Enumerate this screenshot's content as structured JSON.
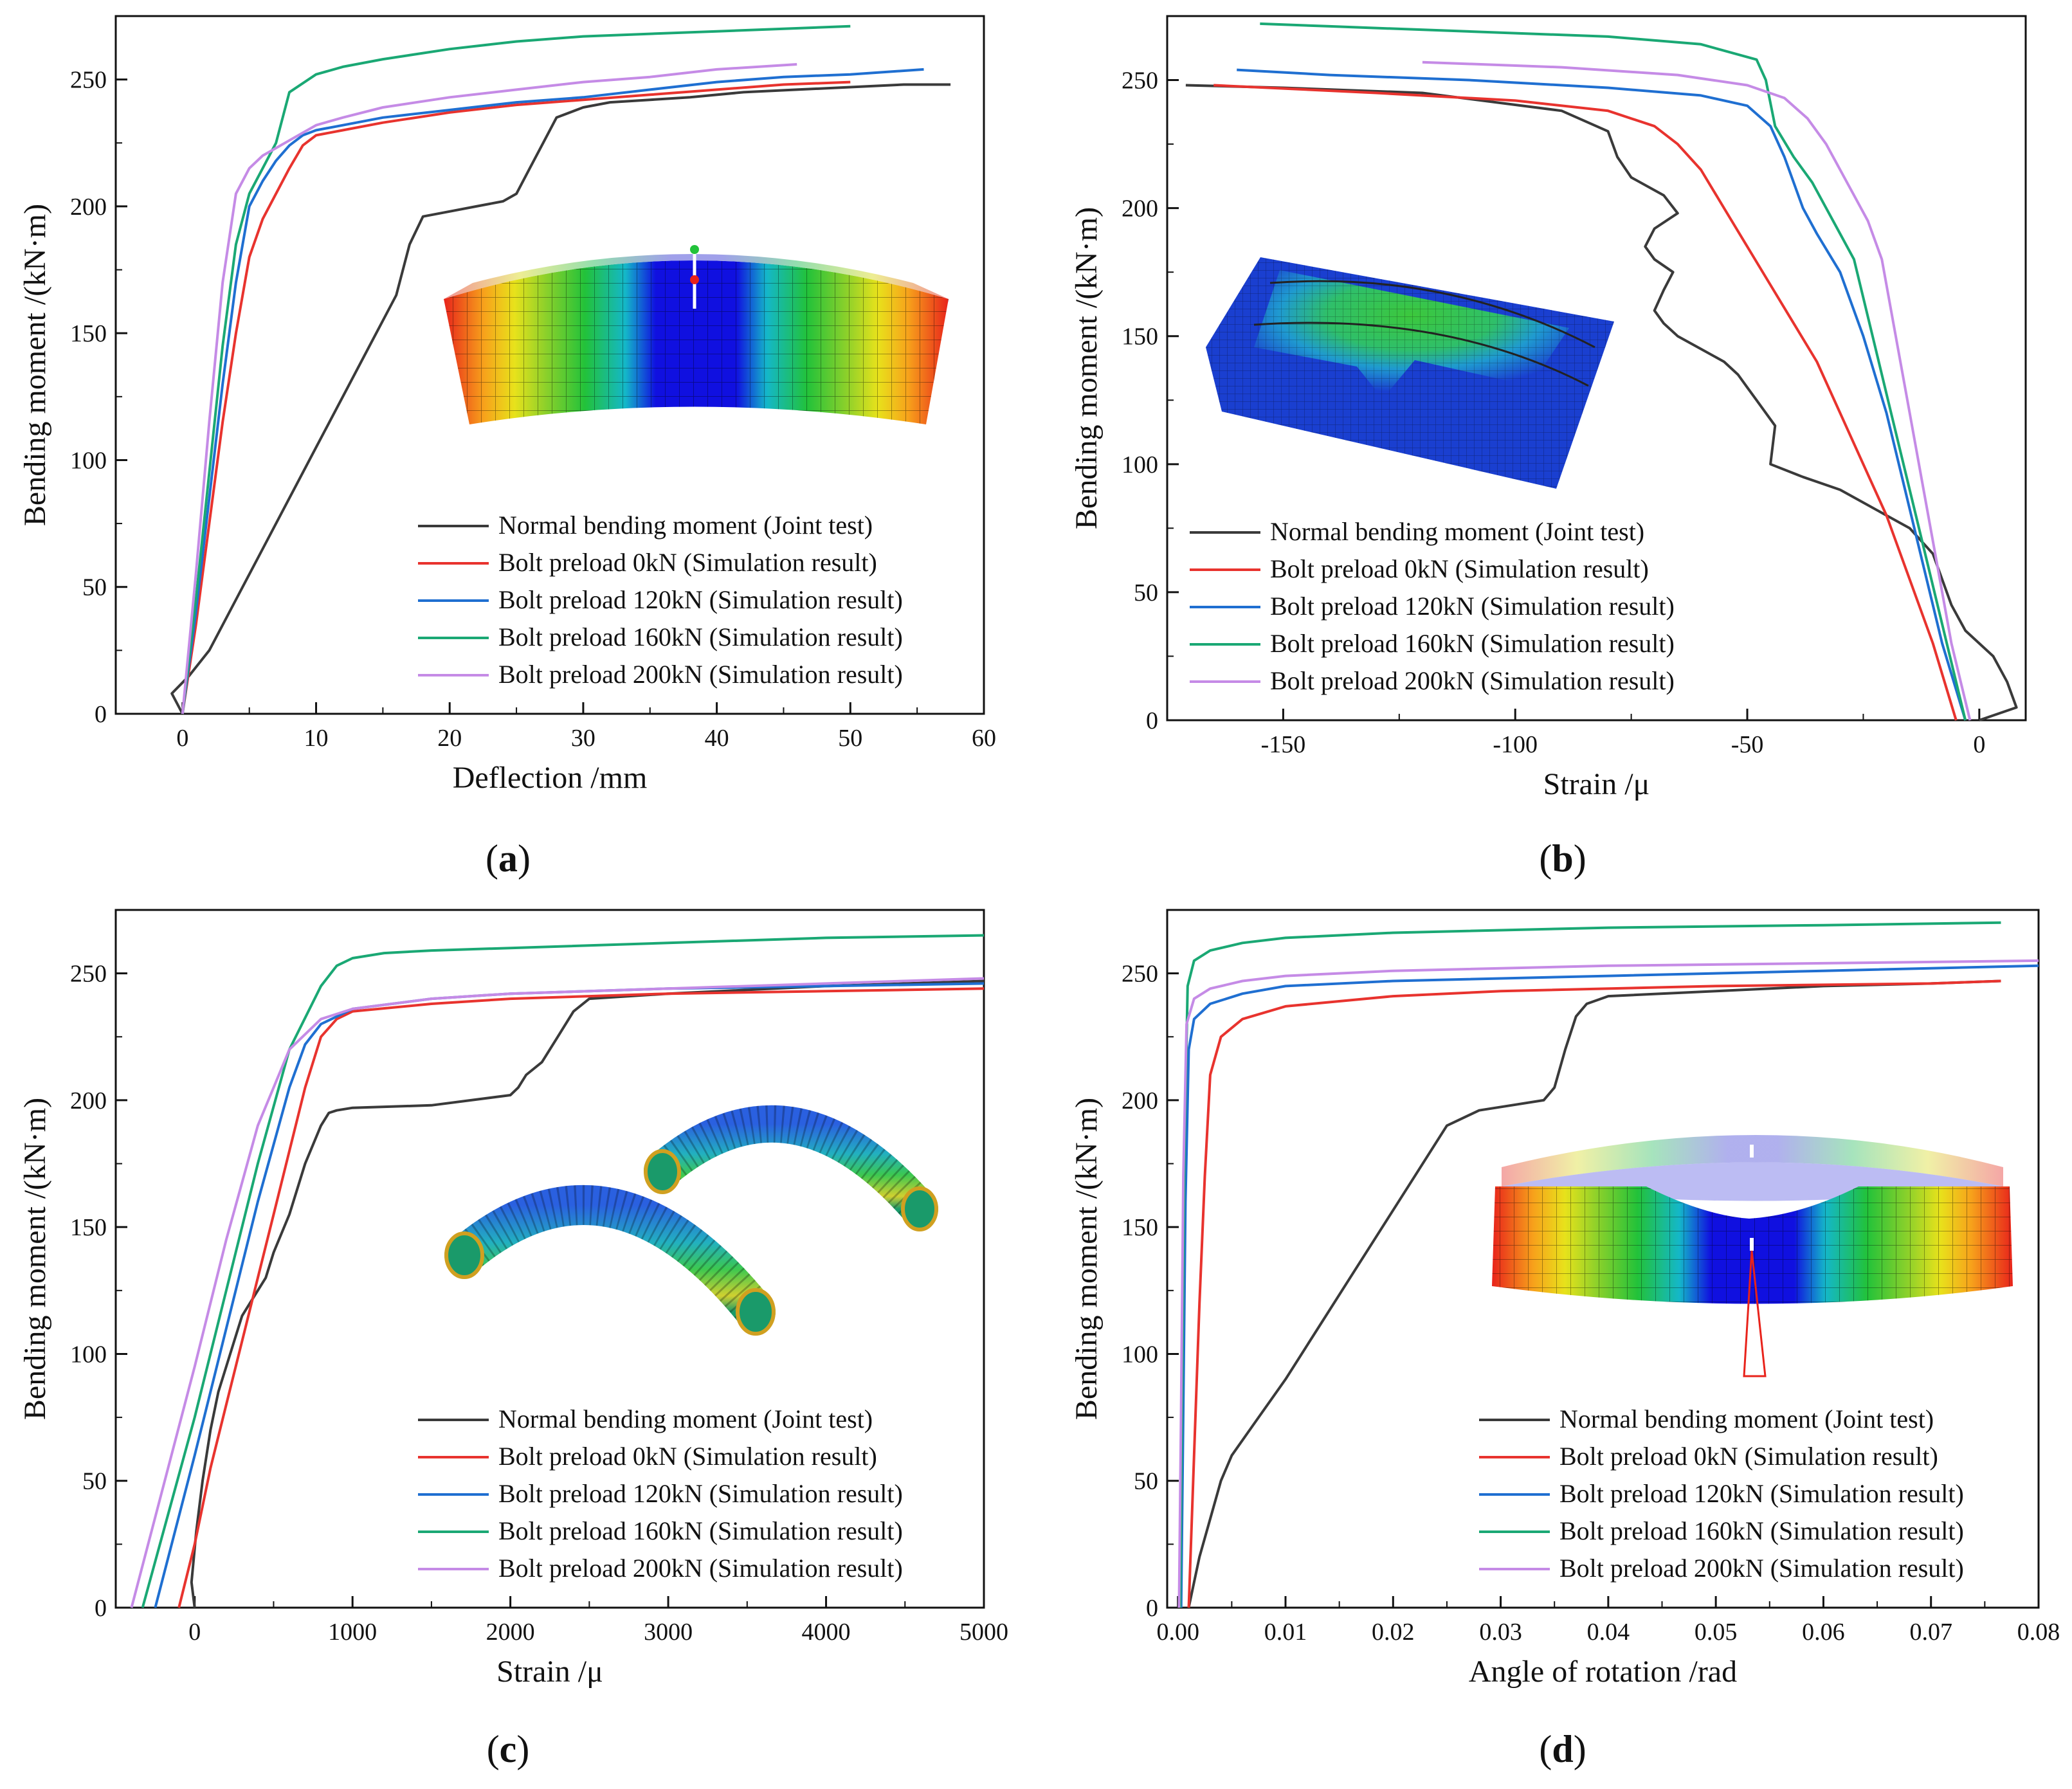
{
  "chart_data": [
    {
      "id": "a",
      "type": "line",
      "panel_label": "a",
      "xlabel": "Deflection /mm",
      "ylabel": "Bending moment /(kN·m)",
      "xlim": [
        -5,
        60
      ],
      "ylim": [
        0,
        275
      ],
      "xticks": [
        0,
        10,
        20,
        30,
        40,
        50,
        60
      ],
      "yticks": [
        0,
        50,
        100,
        150,
        200,
        250
      ],
      "legend_position": "bottom-right",
      "inset": "deformed-joint-contour",
      "series": [
        {
          "name": "Normal bending moment (Joint test)",
          "color": "#3a3a3a",
          "x": [
            0,
            -0.8,
            0.5,
            2,
            4,
            6,
            8,
            10,
            12,
            14,
            15,
            16,
            17,
            18,
            20,
            22,
            24,
            25,
            26,
            27,
            28,
            30,
            32,
            35,
            38,
            42,
            46,
            50,
            54,
            57.5
          ],
          "y": [
            0,
            8,
            15,
            25,
            45,
            65,
            85,
            105,
            125,
            145,
            155,
            165,
            185,
            196,
            198,
            200,
            202,
            205,
            215,
            225,
            235,
            239,
            241,
            242,
            243,
            245,
            246,
            247,
            248,
            248
          ]
        },
        {
          "name": "Bolt preload 0kN     (Simulation result)",
          "color": "#e8332e",
          "x": [
            0,
            1,
            2,
            3,
            4,
            5,
            6,
            7,
            8,
            9,
            10,
            12,
            15,
            20,
            25,
            30,
            35,
            40,
            45,
            50
          ],
          "y": [
            0,
            35,
            75,
            115,
            150,
            180,
            195,
            205,
            215,
            224,
            228,
            230,
            233,
            237,
            240,
            242,
            244,
            246,
            248,
            249
          ]
        },
        {
          "name": "Bolt preload 120kN (Simulation result)",
          "color": "#1f6fd1",
          "x": [
            0,
            1,
            2,
            3,
            4,
            5,
            6,
            7,
            8,
            9,
            10,
            12,
            15,
            20,
            25,
            30,
            35,
            40,
            45,
            50,
            55.5
          ],
          "y": [
            0,
            40,
            85,
            130,
            170,
            200,
            210,
            218,
            224,
            228,
            230,
            232,
            235,
            238,
            241,
            243,
            246,
            249,
            251,
            252,
            254
          ]
        },
        {
          "name": "Bolt preload 160kN (Simulation result)",
          "color": "#1aa874",
          "x": [
            0,
            1,
            2,
            3,
            4,
            5,
            6,
            7,
            8,
            10,
            12,
            15,
            20,
            25,
            30,
            35,
            40,
            45,
            50
          ],
          "y": [
            0,
            45,
            95,
            145,
            185,
            205,
            215,
            225,
            245,
            252,
            255,
            258,
            262,
            265,
            267,
            268,
            269,
            270,
            271
          ]
        },
        {
          "name": "Bolt preload 200kN (Simulation result)",
          "color": "#c58be6",
          "x": [
            0,
            1,
            2,
            3,
            4,
            5,
            6,
            7,
            8,
            9,
            10,
            12,
            15,
            20,
            25,
            30,
            35,
            40,
            46
          ],
          "y": [
            0,
            55,
            115,
            170,
            205,
            215,
            220,
            223,
            226,
            229,
            232,
            235,
            239,
            243,
            246,
            249,
            251,
            254,
            256
          ]
        }
      ]
    },
    {
      "id": "b",
      "type": "line",
      "panel_label": "b",
      "xlabel": "Strain /μ",
      "ylabel": "Bending moment /(kN·m)",
      "xlim": [
        -175,
        10
      ],
      "ylim": [
        0,
        275
      ],
      "xticks": [
        -150,
        -100,
        -50,
        0
      ],
      "yticks": [
        0,
        50,
        100,
        150,
        200,
        250
      ],
      "legend_position": "bottom-left",
      "inset": "joint-segment-contour",
      "series": [
        {
          "name": "Normal bending moment (Joint test)",
          "color": "#3a3a3a",
          "x": [
            0,
            8,
            6,
            3,
            -3,
            -6,
            -8,
            -10,
            -15,
            -20,
            -25,
            -30,
            -38,
            -45,
            -44,
            -48,
            -50,
            -52,
            -55,
            -60,
            -65,
            -68,
            -70,
            -68,
            -66,
            -70,
            -72,
            -70,
            -65,
            -68,
            -75,
            -78,
            -80,
            -90,
            -120,
            -150,
            -171
          ],
          "y": [
            0,
            5,
            15,
            25,
            35,
            45,
            55,
            65,
            75,
            80,
            85,
            90,
            95,
            100,
            115,
            125,
            130,
            135,
            140,
            145,
            150,
            155,
            160,
            168,
            175,
            180,
            185,
            192,
            198,
            205,
            212,
            220,
            230,
            238,
            245,
            247,
            248
          ]
        },
        {
          "name": "Bolt preload 0kN     (Simulation result)",
          "color": "#e8332e",
          "x": [
            -5,
            -10,
            -15,
            -20,
            -25,
            -30,
            -35,
            -40,
            -45,
            -50,
            -55,
            -60,
            -65,
            -70,
            -80,
            -100,
            -130,
            -165
          ],
          "y": [
            0,
            30,
            55,
            80,
            100,
            120,
            140,
            155,
            170,
            185,
            200,
            215,
            225,
            232,
            238,
            242,
            245,
            248
          ]
        },
        {
          "name": "Bolt preload 120kN (Simulation result)",
          "color": "#1f6fd1",
          "x": [
            -3,
            -8,
            -12,
            -16,
            -20,
            -25,
            -30,
            -35,
            -38,
            -40,
            -42,
            -45,
            -50,
            -60,
            -80,
            -110,
            -140,
            -160
          ],
          "y": [
            0,
            30,
            60,
            90,
            120,
            150,
            175,
            190,
            200,
            210,
            220,
            232,
            240,
            244,
            247,
            250,
            252,
            254
          ]
        },
        {
          "name": "Bolt preload 160kN (Simulation result)",
          "color": "#1aa874",
          "x": [
            -3,
            -7,
            -11,
            -15,
            -19,
            -23,
            -27,
            -30,
            -33,
            -36,
            -40,
            -44,
            -46,
            -48,
            -60,
            -80,
            -110,
            -140,
            -155
          ],
          "y": [
            0,
            30,
            60,
            90,
            120,
            150,
            180,
            190,
            200,
            210,
            220,
            232,
            250,
            258,
            264,
            267,
            269,
            271,
            272
          ]
        },
        {
          "name": "Bolt preload 200kN (Simulation result)",
          "color": "#c58be6",
          "x": [
            -2,
            -6,
            -9,
            -12,
            -15,
            -18,
            -21,
            -24,
            -27,
            -30,
            -33,
            -37,
            -42,
            -50,
            -65,
            -90,
            -120
          ],
          "y": [
            0,
            30,
            60,
            90,
            120,
            150,
            180,
            195,
            205,
            215,
            225,
            235,
            243,
            248,
            252,
            255,
            257
          ]
        }
      ]
    },
    {
      "id": "c",
      "type": "line",
      "panel_label": "c",
      "xlabel": "Strain /μ",
      "ylabel": "Bending moment /(kN·m)",
      "xlim": [
        -500,
        5000
      ],
      "ylim": [
        0,
        275
      ],
      "xticks": [
        0,
        1000,
        2000,
        3000,
        4000,
        5000
      ],
      "yticks": [
        0,
        50,
        100,
        150,
        200,
        250
      ],
      "legend_position": "bottom-right",
      "inset": "bolt-contour",
      "series": [
        {
          "name": "Normal bending moment (Joint test)",
          "color": "#3a3a3a",
          "x": [
            0,
            -20,
            10,
            50,
            100,
            150,
            200,
            250,
            300,
            350,
            400,
            450,
            500,
            600,
            700,
            800,
            850,
            900,
            1000,
            1500,
            2000,
            2050,
            2100,
            2200,
            2300,
            2400,
            2500,
            3000,
            4000,
            5000
          ],
          "y": [
            0,
            10,
            30,
            50,
            70,
            85,
            95,
            105,
            115,
            120,
            125,
            130,
            140,
            155,
            175,
            190,
            195,
            196,
            197,
            198,
            202,
            205,
            210,
            215,
            225,
            235,
            240,
            242,
            245,
            247
          ]
        },
        {
          "name": "Bolt preload 0kN     (Simulation result)",
          "color": "#e8332e",
          "x": [
            -100,
            0,
            100,
            200,
            300,
            400,
            500,
            600,
            700,
            800,
            900,
            1000,
            1500,
            2000,
            2500,
            3000,
            4000,
            5000
          ],
          "y": [
            0,
            25,
            55,
            80,
            105,
            130,
            155,
            180,
            205,
            225,
            232,
            235,
            238,
            240,
            241,
            242,
            243,
            244
          ]
        },
        {
          "name": "Bolt preload 120kN (Simulation result)",
          "color": "#1f6fd1",
          "x": [
            -250,
            0,
            200,
            400,
            600,
            700,
            800,
            1000,
            1500,
            2000,
            3000,
            4000,
            5000
          ],
          "y": [
            0,
            60,
            110,
            160,
            205,
            222,
            230,
            236,
            240,
            242,
            244,
            245,
            246
          ]
        },
        {
          "name": "Bolt preload 160kN (Simulation result)",
          "color": "#1aa874",
          "x": [
            -330,
            0,
            200,
            400,
            600,
            800,
            900,
            1000,
            1200,
            1500,
            2000,
            3000,
            4000,
            5000
          ],
          "y": [
            0,
            75,
            125,
            175,
            220,
            245,
            253,
            256,
            258,
            259,
            260,
            262,
            264,
            265
          ]
        },
        {
          "name": "Bolt preload 200kN (Simulation result)",
          "color": "#c58be6",
          "x": [
            -400,
            0,
            200,
            400,
            600,
            800,
            1000,
            1500,
            2000,
            3000,
            4000,
            5000
          ],
          "y": [
            0,
            95,
            145,
            190,
            220,
            232,
            236,
            240,
            242,
            244,
            246,
            248
          ]
        }
      ]
    },
    {
      "id": "d",
      "type": "line",
      "panel_label": "d",
      "xlabel": "Angle of rotation /rad",
      "ylabel": "Bending moment /(kN·m)",
      "xlim": [
        -0.001,
        0.08
      ],
      "ylim": [
        0,
        275
      ],
      "xticks": [
        0.0,
        0.01,
        0.02,
        0.03,
        0.04,
        0.05,
        0.06,
        0.07,
        0.08
      ],
      "xtick_labels": [
        "0.00",
        "0.01",
        "0.02",
        "0.03",
        "0.04",
        "0.05",
        "0.06",
        "0.07",
        "0.08"
      ],
      "yticks": [
        0,
        50,
        100,
        150,
        200,
        250
      ],
      "legend_position": "bottom-right",
      "inset": "rotation-angle-contour",
      "series": [
        {
          "name": "Normal bending moment (Joint test)",
          "color": "#3a3a3a",
          "x": [
            0.001,
            0.0015,
            0.002,
            0.003,
            0.004,
            0.005,
            0.007,
            0.01,
            0.013,
            0.016,
            0.019,
            0.022,
            0.025,
            0.028,
            0.031,
            0.034,
            0.035,
            0.036,
            0.037,
            0.038,
            0.04,
            0.05,
            0.06,
            0.07,
            0.0765
          ],
          "y": [
            0,
            10,
            20,
            35,
            50,
            60,
            72,
            90,
            110,
            130,
            150,
            170,
            190,
            196,
            198,
            200,
            205,
            220,
            233,
            238,
            241,
            243,
            245,
            246,
            247
          ]
        },
        {
          "name": "Bolt preload 0kN     (Simulation result)",
          "color": "#e8332e",
          "x": [
            0.001,
            0.0015,
            0.002,
            0.0025,
            0.003,
            0.004,
            0.006,
            0.01,
            0.02,
            0.03,
            0.05,
            0.07,
            0.0765
          ],
          "y": [
            0,
            60,
            120,
            170,
            210,
            225,
            232,
            237,
            241,
            243,
            245,
            246,
            247
          ]
        },
        {
          "name": "Bolt preload 120kN (Simulation result)",
          "color": "#1f6fd1",
          "x": [
            0.0003,
            0.0005,
            0.0007,
            0.001,
            0.0015,
            0.003,
            0.006,
            0.01,
            0.02,
            0.04,
            0.06,
            0.08
          ],
          "y": [
            0,
            80,
            160,
            220,
            232,
            238,
            242,
            245,
            247,
            249,
            251,
            253
          ]
        },
        {
          "name": "Bolt preload 160kN (Simulation result)",
          "color": "#1aa874",
          "x": [
            0.0002,
            0.0004,
            0.0006,
            0.0009,
            0.0015,
            0.003,
            0.006,
            0.01,
            0.02,
            0.04,
            0.06,
            0.0765
          ],
          "y": [
            0,
            90,
            180,
            245,
            255,
            259,
            262,
            264,
            266,
            268,
            269,
            270
          ]
        },
        {
          "name": "Bolt preload 200kN (Simulation result)",
          "color": "#c58be6",
          "x": [
            0.0001,
            0.0003,
            0.0005,
            0.0008,
            0.0015,
            0.003,
            0.006,
            0.01,
            0.02,
            0.04,
            0.06,
            0.08
          ],
          "y": [
            0,
            80,
            170,
            230,
            240,
            244,
            247,
            249,
            251,
            253,
            254,
            255
          ]
        }
      ]
    }
  ]
}
